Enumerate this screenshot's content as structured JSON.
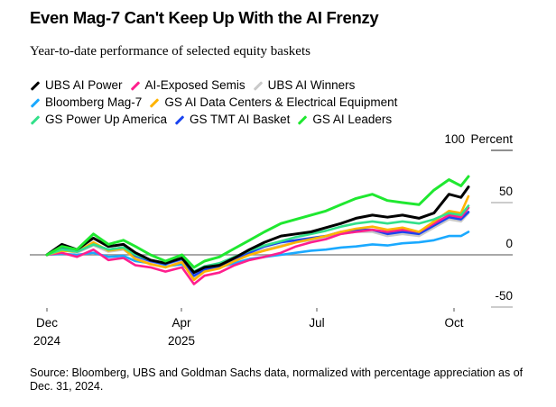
{
  "header": {
    "title": "Even Mag-7 Can't Keep Up With the AI Frenzy",
    "subtitle": "Year-to-date performance of selected equity baskets"
  },
  "legend_rows": [
    [
      0,
      1,
      2
    ],
    [
      3,
      4
    ],
    [
      5,
      6,
      7
    ]
  ],
  "footer": {
    "source": "Source: Bloomberg, UBS and Goldman Sachs data, normalized with percentage appreciation as of Dec. 31, 2024."
  },
  "chart_data": {
    "type": "line",
    "title": "Even Mag-7 Can't Keep Up With the AI Frenzy",
    "subtitle": "Year-to-date performance of selected equity baskets",
    "xlabel": "",
    "ylabel": "Percent",
    "y_unit_label": "Percent",
    "ylim": [
      -60,
      100
    ],
    "yticks": [
      100,
      50,
      0,
      -50
    ],
    "ytick_labels": [
      "100",
      "50",
      "0",
      "-50"
    ],
    "xlim": [
      "2024-12-31",
      "2025-10-08"
    ],
    "xticks": [
      {
        "date": "2024-12-01",
        "label": "Dec",
        "sublabel": "2024"
      },
      {
        "date": "2025-04-01",
        "label": "Apr",
        "sublabel": "2025"
      },
      {
        "date": "2025-07-01",
        "label": "Jul",
        "sublabel": ""
      },
      {
        "date": "2025-10-01",
        "label": "Oct",
        "sublabel": ""
      }
    ],
    "grid": "horizontal ticks at right",
    "legend_position": "top",
    "x": [
      "2024-12-31",
      "2025-01-10",
      "2025-01-20",
      "2025-01-31",
      "2025-02-10",
      "2025-02-20",
      "2025-02-28",
      "2025-03-10",
      "2025-03-20",
      "2025-03-31",
      "2025-04-08",
      "2025-04-15",
      "2025-04-25",
      "2025-05-05",
      "2025-05-15",
      "2025-05-25",
      "2025-06-05",
      "2025-06-15",
      "2025-06-25",
      "2025-07-05",
      "2025-07-15",
      "2025-07-25",
      "2025-08-05",
      "2025-08-15",
      "2025-08-25",
      "2025-09-05",
      "2025-09-15",
      "2025-09-25",
      "2025-10-03",
      "2025-10-08"
    ],
    "series": [
      {
        "name": "UBS AI Power",
        "color": "#000000",
        "values": [
          0,
          10,
          5,
          16,
          8,
          10,
          2,
          -5,
          -8,
          -3,
          -17,
          -12,
          -10,
          -3,
          5,
          12,
          18,
          20,
          22,
          26,
          30,
          35,
          38,
          36,
          38,
          35,
          40,
          58,
          55,
          65
        ]
      },
      {
        "name": "AI-Exposed Semis",
        "color": "#ff1f8e",
        "values": [
          0,
          2,
          -2,
          5,
          -5,
          -3,
          -10,
          -12,
          -16,
          -12,
          -28,
          -20,
          -17,
          -10,
          -5,
          -2,
          2,
          8,
          12,
          15,
          20,
          22,
          24,
          22,
          24,
          22,
          30,
          38,
          36,
          45
        ]
      },
      {
        "name": "UBS AI Winners",
        "color": "#c9c9c9",
        "values": [
          0,
          5,
          2,
          9,
          3,
          5,
          -3,
          -8,
          -12,
          -6,
          -22,
          -16,
          -12,
          -5,
          0,
          5,
          9,
          12,
          14,
          16,
          20,
          22,
          22,
          18,
          20,
          18,
          26,
          34,
          32,
          40
        ]
      },
      {
        "name": "Bloomberg Mag-7",
        "color": "#1aa9ff",
        "values": [
          0,
          1,
          0,
          2,
          -2,
          -1,
          -6,
          -8,
          -11,
          -9,
          -20,
          -15,
          -12,
          -8,
          -4,
          -2,
          0,
          2,
          4,
          5,
          7,
          8,
          10,
          9,
          11,
          12,
          14,
          18,
          18,
          22
        ]
      },
      {
        "name": "GS AI Data Centers & Electrical Equipment",
        "color": "#ffb400",
        "values": [
          0,
          4,
          3,
          12,
          4,
          6,
          -4,
          -9,
          -12,
          -7,
          -24,
          -16,
          -13,
          -6,
          0,
          4,
          8,
          12,
          15,
          18,
          22,
          25,
          27,
          24,
          26,
          22,
          32,
          42,
          40,
          56
        ]
      },
      {
        "name": "GS Power Up America",
        "color": "#33e08a",
        "values": [
          0,
          5,
          3,
          10,
          5,
          7,
          0,
          -5,
          -8,
          -3,
          -16,
          -11,
          -8,
          -2,
          4,
          9,
          13,
          17,
          20,
          23,
          27,
          30,
          32,
          30,
          32,
          30,
          34,
          40,
          38,
          47
        ]
      },
      {
        "name": "GS TMT AI Basket",
        "color": "#1a44f0",
        "values": [
          0,
          6,
          3,
          10,
          5,
          7,
          -1,
          -6,
          -9,
          -4,
          -20,
          -14,
          -11,
          -4,
          2,
          8,
          12,
          14,
          16,
          18,
          22,
          24,
          24,
          20,
          22,
          20,
          28,
          36,
          34,
          41
        ]
      },
      {
        "name": "GS AI Leaders",
        "color": "#1fe830",
        "values": [
          0,
          8,
          5,
          20,
          10,
          14,
          8,
          0,
          -6,
          0,
          -12,
          -6,
          -2,
          6,
          14,
          22,
          30,
          34,
          38,
          42,
          48,
          54,
          58,
          52,
          50,
          48,
          62,
          72,
          66,
          75
        ]
      }
    ]
  }
}
